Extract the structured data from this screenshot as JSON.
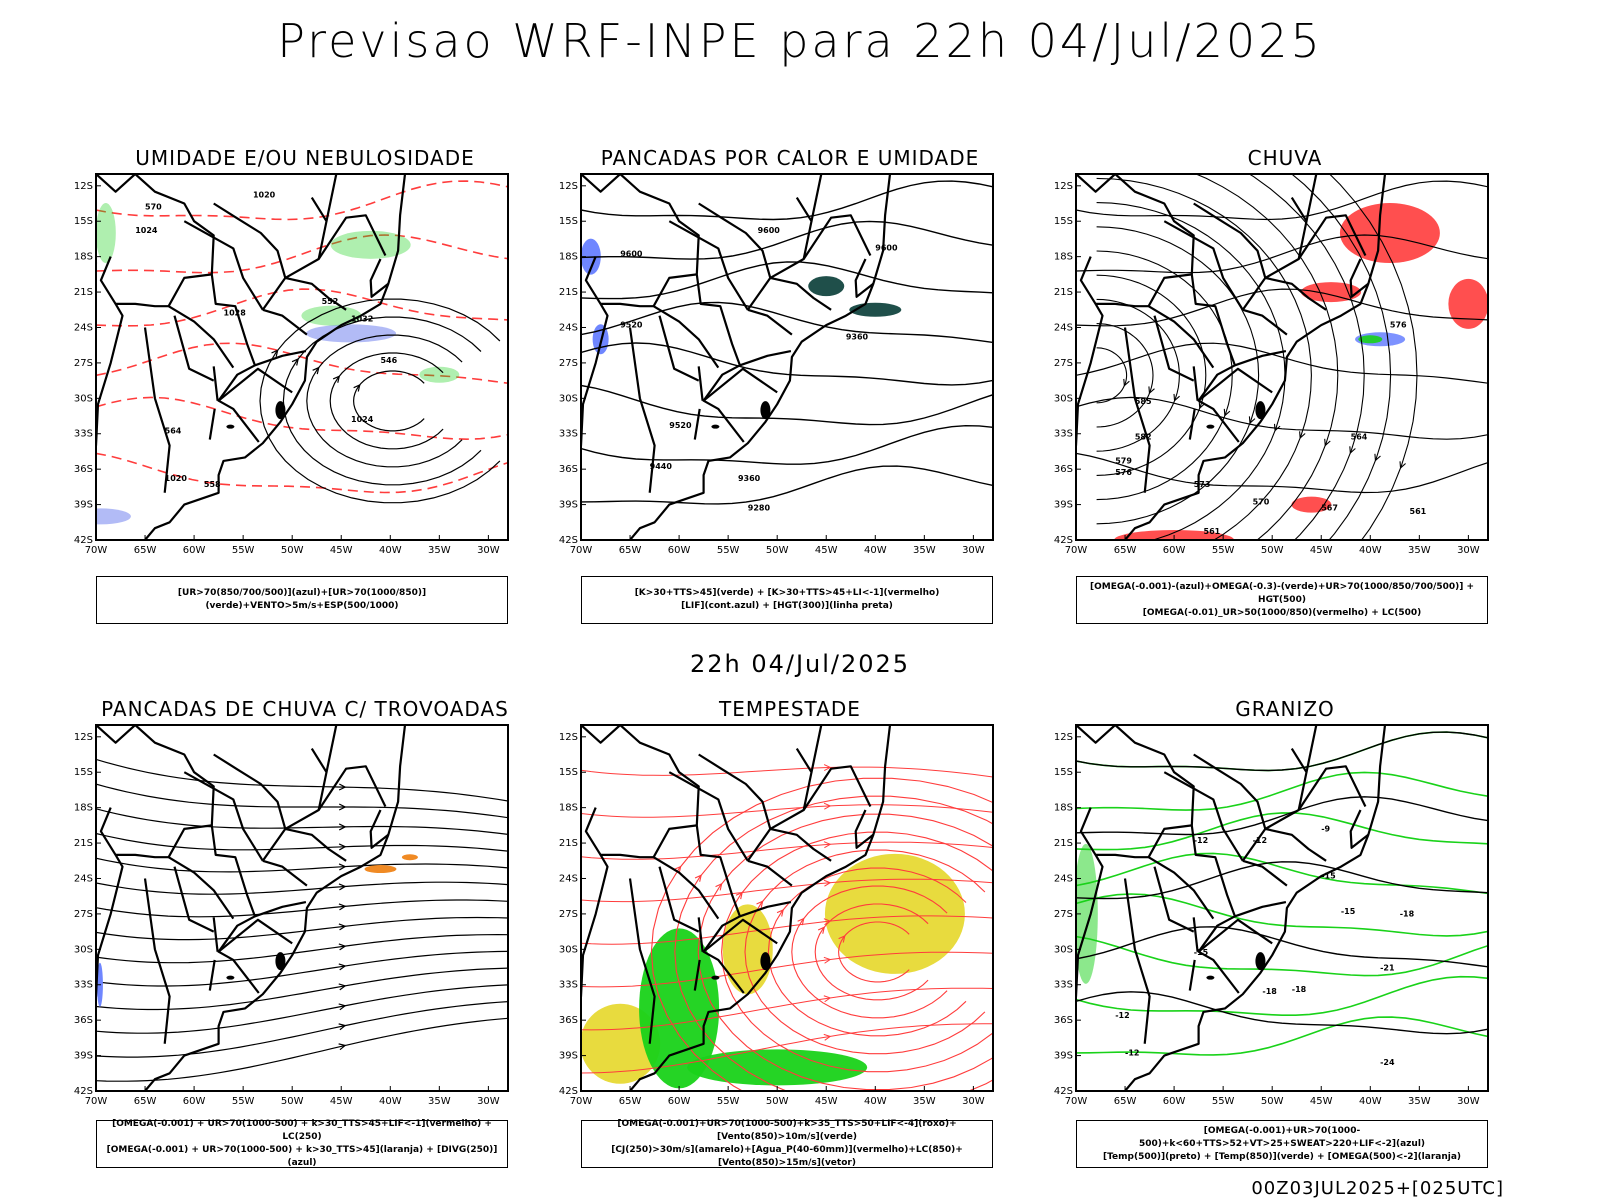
{
  "title": "Previsao WRF-INPE  para 22h 04/Jul/2025",
  "mid_title": "22h 04/Jul/2025",
  "footer": "00Z03JUL2025+[025UTC]",
  "axes": {
    "lat_labels": [
      "12S",
      "15S",
      "18S",
      "21S",
      "24S",
      "27S",
      "30S",
      "33S",
      "36S",
      "39S",
      "42S"
    ],
    "lon_labels": [
      "70W",
      "65W",
      "60W",
      "55W",
      "50W",
      "45W",
      "40W",
      "35W",
      "30W"
    ]
  },
  "colors": {
    "blue": "#6f86ff",
    "lightblue": "#aab4f5",
    "green": "#19d219",
    "red": "#ff3c3c",
    "orange": "#f08a24",
    "yellow": "#e7d934",
    "darkgreen": "#1f4f4a",
    "black": "#000000"
  },
  "panels": [
    {
      "title": "UMIDADE E/OU NEBULOSIDADE",
      "legend": [
        "[UR>70(850/700/500)](azul)+[UR>70(1000/850)](verde)+VENTO>5m/s+ESP(500/1000)"
      ],
      "contour_labels": [
        "1020",
        "1024",
        "1028",
        "1032",
        "1024",
        "1020",
        "570",
        "552",
        "546",
        "564",
        "558"
      ]
    },
    {
      "title": "PANCADAS POR CALOR E UMIDADE",
      "legend": [
        "[K>30+TTS>45](verde) + [K>30+TTS>45+LI<-1](vermelho)",
        "[LIF](cont.azul) + [HGT(300)](linha preta)"
      ],
      "contour_labels": [
        "9600",
        "9600",
        "9600",
        "9520",
        "9520",
        "9440",
        "9360",
        "9360",
        "9280"
      ]
    },
    {
      "title": "CHUVA",
      "legend": [
        "[OMEGA(-0.001)-(azul)+OMEGA(-0.3)-(verde)+UR>70(1000/850/700/500)] + HGT(500)",
        "[OMEGA(-0.01)_UR>50(1000/850)(vermelho) + LC(500)"
      ],
      "contour_labels": [
        "585",
        "582",
        "579",
        "576",
        "573",
        "570",
        "567",
        "564",
        "561",
        "561",
        "576"
      ]
    },
    {
      "title": "PANCADAS DE CHUVA C/ TROVOADAS",
      "legend": [
        "[OMEGA(-0.001) + UR>70(1000-500) + k>30_TTS>45+LIF<-1](vermelho) + LC(250)",
        "[OMEGA(-0.001) + UR>70(1000-500) + k>30_TTS>45](laranja) + [DIVG(250)](azul)"
      ],
      "contour_labels": []
    },
    {
      "title": "TEMPESTADE",
      "legend": [
        "[OMEGA(-0.001)+UR>70(1000-500)+k>35_TTS>50+LIF<-4](roxo)+[Vento(850)>10m/s](verde)",
        "[CJ(250)>30m/s](amarelo)+[Agua_P(40-60mm)](vermelho)+LC(850)+[Vento(850)>15m/s](vetor)"
      ],
      "contour_labels": []
    },
    {
      "title": "GRANIZO",
      "legend": [
        "[OMEGA(-0.001)+UR>70(1000-500)+k<60+TTS>52+VT>25+SWEAT>220+LIF<-2](azul)",
        "[Temp(500)](preto) + [Temp(850)](verde) + [OMEGA(500)<-2](laranja)"
      ],
      "contour_labels": [
        "-9",
        "-12",
        "-12",
        "-15",
        "-15",
        "-18",
        "-18",
        "-21",
        "-24",
        "-12",
        "-12",
        "-15",
        "-18"
      ]
    }
  ]
}
